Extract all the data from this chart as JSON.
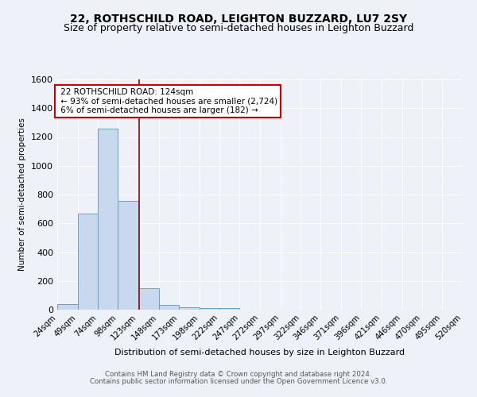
{
  "title": "22, ROTHSCHILD ROAD, LEIGHTON BUZZARD, LU7 2SY",
  "subtitle": "Size of property relative to semi-detached houses in Leighton Buzzard",
  "xlabel": "Distribution of semi-detached houses by size in Leighton Buzzard",
  "ylabel": "Number of semi-detached properties",
  "footer_line1": "Contains HM Land Registry data © Crown copyright and database right 2024.",
  "footer_line2": "Contains public sector information licensed under the Open Government Licence v3.0.",
  "bin_labels": [
    "24sqm",
    "49sqm",
    "74sqm",
    "98sqm",
    "123sqm",
    "148sqm",
    "173sqm",
    "198sqm",
    "222sqm",
    "247sqm",
    "272sqm",
    "297sqm",
    "322sqm",
    "346sqm",
    "371sqm",
    "396sqm",
    "421sqm",
    "446sqm",
    "470sqm",
    "495sqm",
    "520sqm"
  ],
  "bin_edges": [
    24,
    49,
    74,
    98,
    123,
    148,
    173,
    198,
    222,
    247,
    272,
    297,
    322,
    346,
    371,
    396,
    421,
    446,
    470,
    495,
    520
  ],
  "bar_values": [
    40,
    670,
    1260,
    755,
    150,
    35,
    18,
    12,
    12,
    0,
    0,
    0,
    0,
    0,
    0,
    0,
    0,
    0,
    0,
    0
  ],
  "bar_color": "#c8d8ee",
  "bar_edge_color": "#6a9fc8",
  "property_size": 124,
  "vline_color": "#8b1a1a",
  "annotation_line1": "22 ROTHSCHILD ROAD: 124sqm",
  "annotation_line2": "← 93% of semi-detached houses are smaller (2,724)",
  "annotation_line3": "6% of semi-detached houses are larger (182) →",
  "annotation_box_edge": "#cc0000",
  "annotation_box_face": "#ffffff",
  "ylim": [
    0,
    1600
  ],
  "yticks": [
    0,
    200,
    400,
    600,
    800,
    1000,
    1200,
    1400,
    1600
  ],
  "bg_color": "#eef2f8",
  "plot_bg_color": "#eef2f8",
  "grid_color": "#ffffff",
  "title_fontsize": 10,
  "subtitle_fontsize": 9
}
